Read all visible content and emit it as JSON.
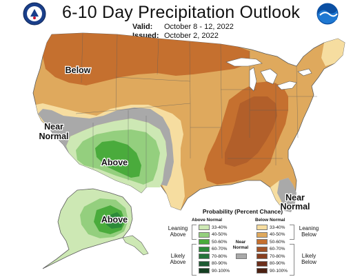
{
  "header": {
    "title": "6-10 Day Precipitation Outlook",
    "valid_label": "Valid:",
    "valid_value": "October 8 - 12, 2022",
    "issued_label": "Issued:",
    "issued_value": "October 2, 2022",
    "left_logo": "doc-seal-icon",
    "right_logo": "noaa-logo-icon"
  },
  "regions": {
    "below_north": "Below",
    "near_normal_west_1": "Near",
    "near_normal_west_2": "Normal",
    "above_southwest": "Above",
    "above_alaska": "Above",
    "near_normal_florida_1": "Near",
    "near_normal_florida_2": "Normal"
  },
  "legend": {
    "title": "Probability (Percent Chance)",
    "above_header": "Above Normal",
    "below_header": "Below Normal",
    "near_header_1": "Near",
    "near_header_2": "Normal",
    "leaning_above": [
      "Leaning",
      "Above"
    ],
    "likely_above": [
      "Likely",
      "Above"
    ],
    "leaning_below": [
      "Leaning",
      "Below"
    ],
    "likely_below": [
      "Likely",
      "Below"
    ],
    "above": [
      {
        "label": "33-40%",
        "color": "#cde8b4"
      },
      {
        "label": "40-50%",
        "color": "#94cf7e"
      },
      {
        "label": "50-60%",
        "color": "#4aab3c"
      },
      {
        "label": "60-70%",
        "color": "#2c8a39"
      },
      {
        "label": "70-80%",
        "color": "#25733a"
      },
      {
        "label": "80-90%",
        "color": "#1d5a32"
      },
      {
        "label": "90-100%",
        "color": "#153f22"
      }
    ],
    "below": [
      {
        "label": "33-40%",
        "color": "#f6dda0"
      },
      {
        "label": "40-50%",
        "color": "#dfa95d"
      },
      {
        "label": "50-60%",
        "color": "#c5702f"
      },
      {
        "label": "60-70%",
        "color": "#a25227"
      },
      {
        "label": "70-80%",
        "color": "#883f20"
      },
      {
        "label": "80-90%",
        "color": "#6c2f1b"
      },
      {
        "label": "90-100%",
        "color": "#4b2011"
      }
    ],
    "near": {
      "color": "#a9a9a9"
    }
  },
  "colors": {
    "below_33": "#f6dda0",
    "below_40": "#dfa95d",
    "below_50": "#c5702f",
    "near": "#a9a9a9",
    "above_33": "#cde8b4",
    "above_40": "#94cf7e",
    "above_50": "#4aab3c",
    "above_60": "#2c8a39",
    "water": "#ffffff",
    "borders": "#5a5a5a"
  }
}
